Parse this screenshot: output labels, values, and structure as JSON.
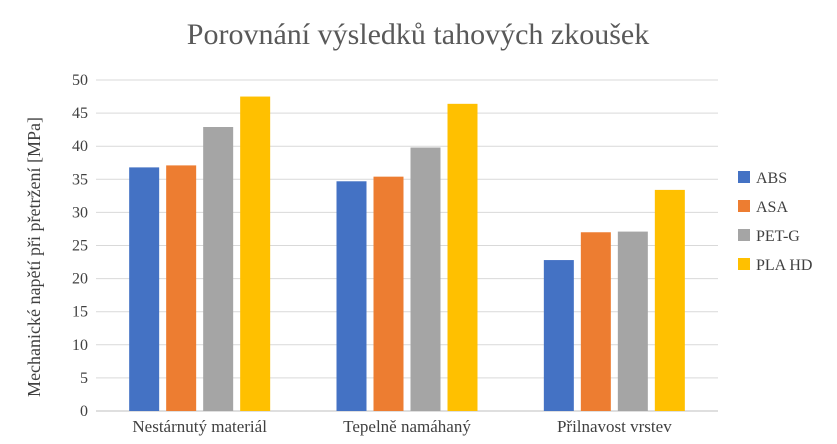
{
  "chart_data": {
    "type": "bar",
    "title": "Porovnání výsledků tahových zkoušek",
    "xlabel": "",
    "ylabel": "Mechanické napětí při přetržení [MPa]",
    "ylim": [
      0,
      50
    ],
    "yticks": [
      0,
      5,
      10,
      15,
      20,
      25,
      30,
      35,
      40,
      45,
      50
    ],
    "grid": true,
    "legend_position": "right",
    "categories": [
      "Nestárnutý materiál",
      "Tepelně namáhaný",
      "Přilnavost vrstev"
    ],
    "series": [
      {
        "name": "ABS",
        "color": "#4472C4",
        "values": [
          36.8,
          34.7,
          22.8
        ]
      },
      {
        "name": "ASA",
        "color": "#ED7D31",
        "values": [
          37.1,
          35.4,
          27.0
        ]
      },
      {
        "name": "PET-G",
        "color": "#A5A5A5",
        "values": [
          42.9,
          39.8,
          27.1
        ]
      },
      {
        "name": "PLA HD",
        "color": "#FFC000",
        "values": [
          47.5,
          46.4,
          33.4
        ]
      }
    ]
  }
}
